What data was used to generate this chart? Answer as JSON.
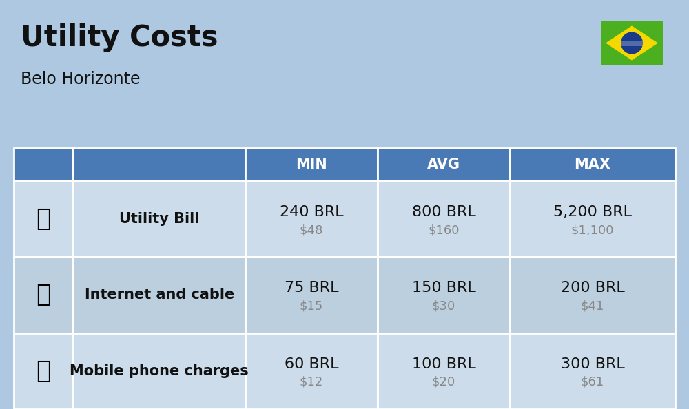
{
  "title": "Utility Costs",
  "subtitle": "Belo Horizonte",
  "background_color": "#adc8e0",
  "header_bg_color": "#4a7ab5",
  "header_text_color": "#ffffff",
  "row_bg_color_1": "#ccdcea",
  "row_bg_color_2": "#bccfde",
  "col_headers": [
    "MIN",
    "AVG",
    "MAX"
  ],
  "rows": [
    {
      "label": "Utility Bill",
      "min_brl": "240 BRL",
      "min_usd": "$48",
      "avg_brl": "800 BRL",
      "avg_usd": "$160",
      "max_brl": "5,200 BRL",
      "max_usd": "$1,100"
    },
    {
      "label": "Internet and cable",
      "min_brl": "75 BRL",
      "min_usd": "$15",
      "avg_brl": "150 BRL",
      "avg_usd": "$30",
      "max_brl": "200 BRL",
      "max_usd": "$41"
    },
    {
      "label": "Mobile phone charges",
      "min_brl": "60 BRL",
      "min_usd": "$12",
      "avg_brl": "100 BRL",
      "avg_usd": "$20",
      "max_brl": "300 BRL",
      "max_usd": "$61"
    }
  ],
  "title_fontsize": 30,
  "subtitle_fontsize": 17,
  "header_fontsize": 15,
  "label_fontsize": 15,
  "value_fontsize": 16,
  "usd_fontsize": 13,
  "flag_box_color": "#4caf20",
  "flag_circle_color": "#1a3a8a",
  "flag_diamond_color": "#f5d800"
}
